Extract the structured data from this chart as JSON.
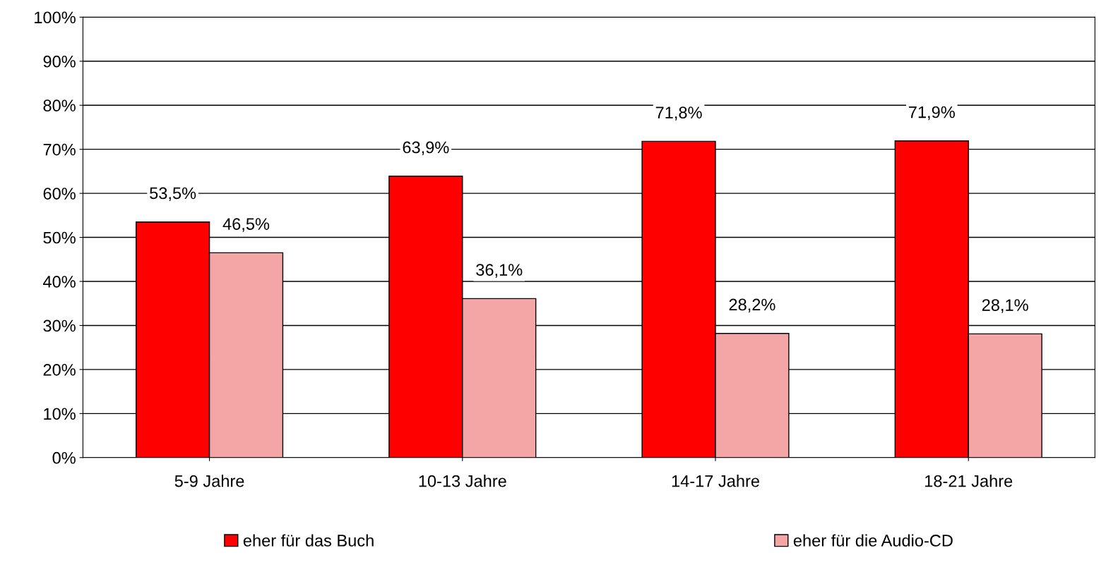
{
  "chart_data": {
    "type": "bar",
    "categories": [
      "5-9 Jahre",
      "10-13 Jahre",
      "14-17 Jahre",
      "18-21 Jahre"
    ],
    "series": [
      {
        "name": "eher für das Buch",
        "color": "#ff0000",
        "values": [
          53.5,
          63.9,
          71.8,
          71.9
        ],
        "value_labels": [
          "53,5%",
          "63,9%",
          "71,8%",
          "71,9%"
        ]
      },
      {
        "name": "eher für die Audio-CD",
        "color": "#f4a6a6",
        "values": [
          46.5,
          36.1,
          28.2,
          28.1
        ],
        "value_labels": [
          "46,5%",
          "36,1%",
          "28,2%",
          "28,1%"
        ]
      }
    ],
    "ylim": [
      0,
      100
    ],
    "yticks": [
      {
        "value": 0,
        "label": "0%"
      },
      {
        "value": 10,
        "label": "10%"
      },
      {
        "value": 20,
        "label": "20%"
      },
      {
        "value": 30,
        "label": "30%"
      },
      {
        "value": 40,
        "label": "40%"
      },
      {
        "value": 50,
        "label": "50%"
      },
      {
        "value": 60,
        "label": "60%"
      },
      {
        "value": 70,
        "label": "70%"
      },
      {
        "value": 80,
        "label": "80%"
      },
      {
        "value": 90,
        "label": "90%"
      },
      {
        "value": 100,
        "label": "100%"
      }
    ],
    "grid": "y",
    "legend": "bottom"
  }
}
